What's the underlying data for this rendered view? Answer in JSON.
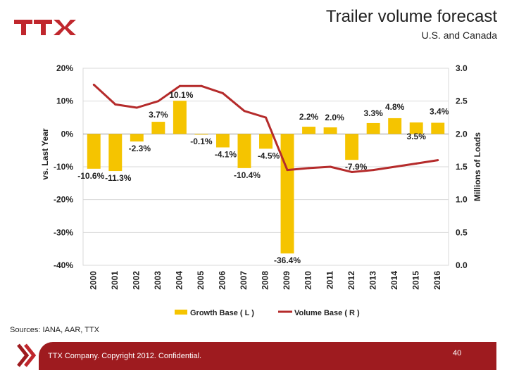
{
  "header": {
    "logo_text": "TTX",
    "title": "Trailer volume forecast",
    "subtitle": "U.S. and Canada"
  },
  "colors": {
    "bar": "#f5c400",
    "line": "#b52b2b",
    "brand": "#9e1b1f",
    "grid": "#d9d9d9"
  },
  "chart_data": {
    "type": "bar",
    "categories": [
      "2000",
      "2001",
      "2002",
      "2003",
      "2004",
      "2005",
      "2006",
      "2007",
      "2008",
      "2009",
      "2010",
      "2011",
      "2012",
      "2013",
      "2014",
      "2015",
      "2016"
    ],
    "series": [
      {
        "name": "Growth Base ( L )",
        "type": "bar",
        "axis": "left",
        "values": [
          -10.6,
          -11.3,
          -2.3,
          3.7,
          10.1,
          -0.1,
          -4.1,
          -10.4,
          -4.5,
          -36.4,
          2.2,
          2.0,
          -7.9,
          3.3,
          4.8,
          3.5,
          3.4
        ],
        "labels": [
          "-10.6%",
          "-11.3%",
          "-2.3%",
          "3.7%",
          "10.1%",
          "-0.1%",
          "-4.1%",
          "-10.4%",
          "-4.5%",
          "-36.4%",
          "2.2%",
          "2.0%",
          "-7.9%",
          "3.3%",
          "4.8%",
          "3.5%",
          "3.4%"
        ]
      },
      {
        "name": "Volume Base ( R )",
        "type": "line",
        "axis": "right",
        "values": [
          2.75,
          2.45,
          2.4,
          2.5,
          2.73,
          2.73,
          2.62,
          2.35,
          2.25,
          1.45,
          1.48,
          1.5,
          1.42,
          1.45,
          1.5,
          1.55,
          1.6
        ]
      }
    ],
    "ylabel_left": "vs. Last Year",
    "ylabel_right": "Millions of Loads",
    "ylim_left": [
      -40,
      20
    ],
    "ylim_right": [
      0.0,
      3.0
    ],
    "yticks_left": [
      "20%",
      "10%",
      "0%",
      "-10%",
      "-20%",
      "-30%",
      "-40%"
    ],
    "yticks_right": [
      "3.0",
      "2.5",
      "2.0",
      "1.5",
      "1.0",
      "0.5",
      "0.0"
    ],
    "grid": true,
    "legend_position": "bottom"
  },
  "footer": {
    "sources": "Sources: IANA, AAR, TTX",
    "copyright": "TTX Company. Copyright 2012. Confidential.",
    "page_number": "40"
  }
}
